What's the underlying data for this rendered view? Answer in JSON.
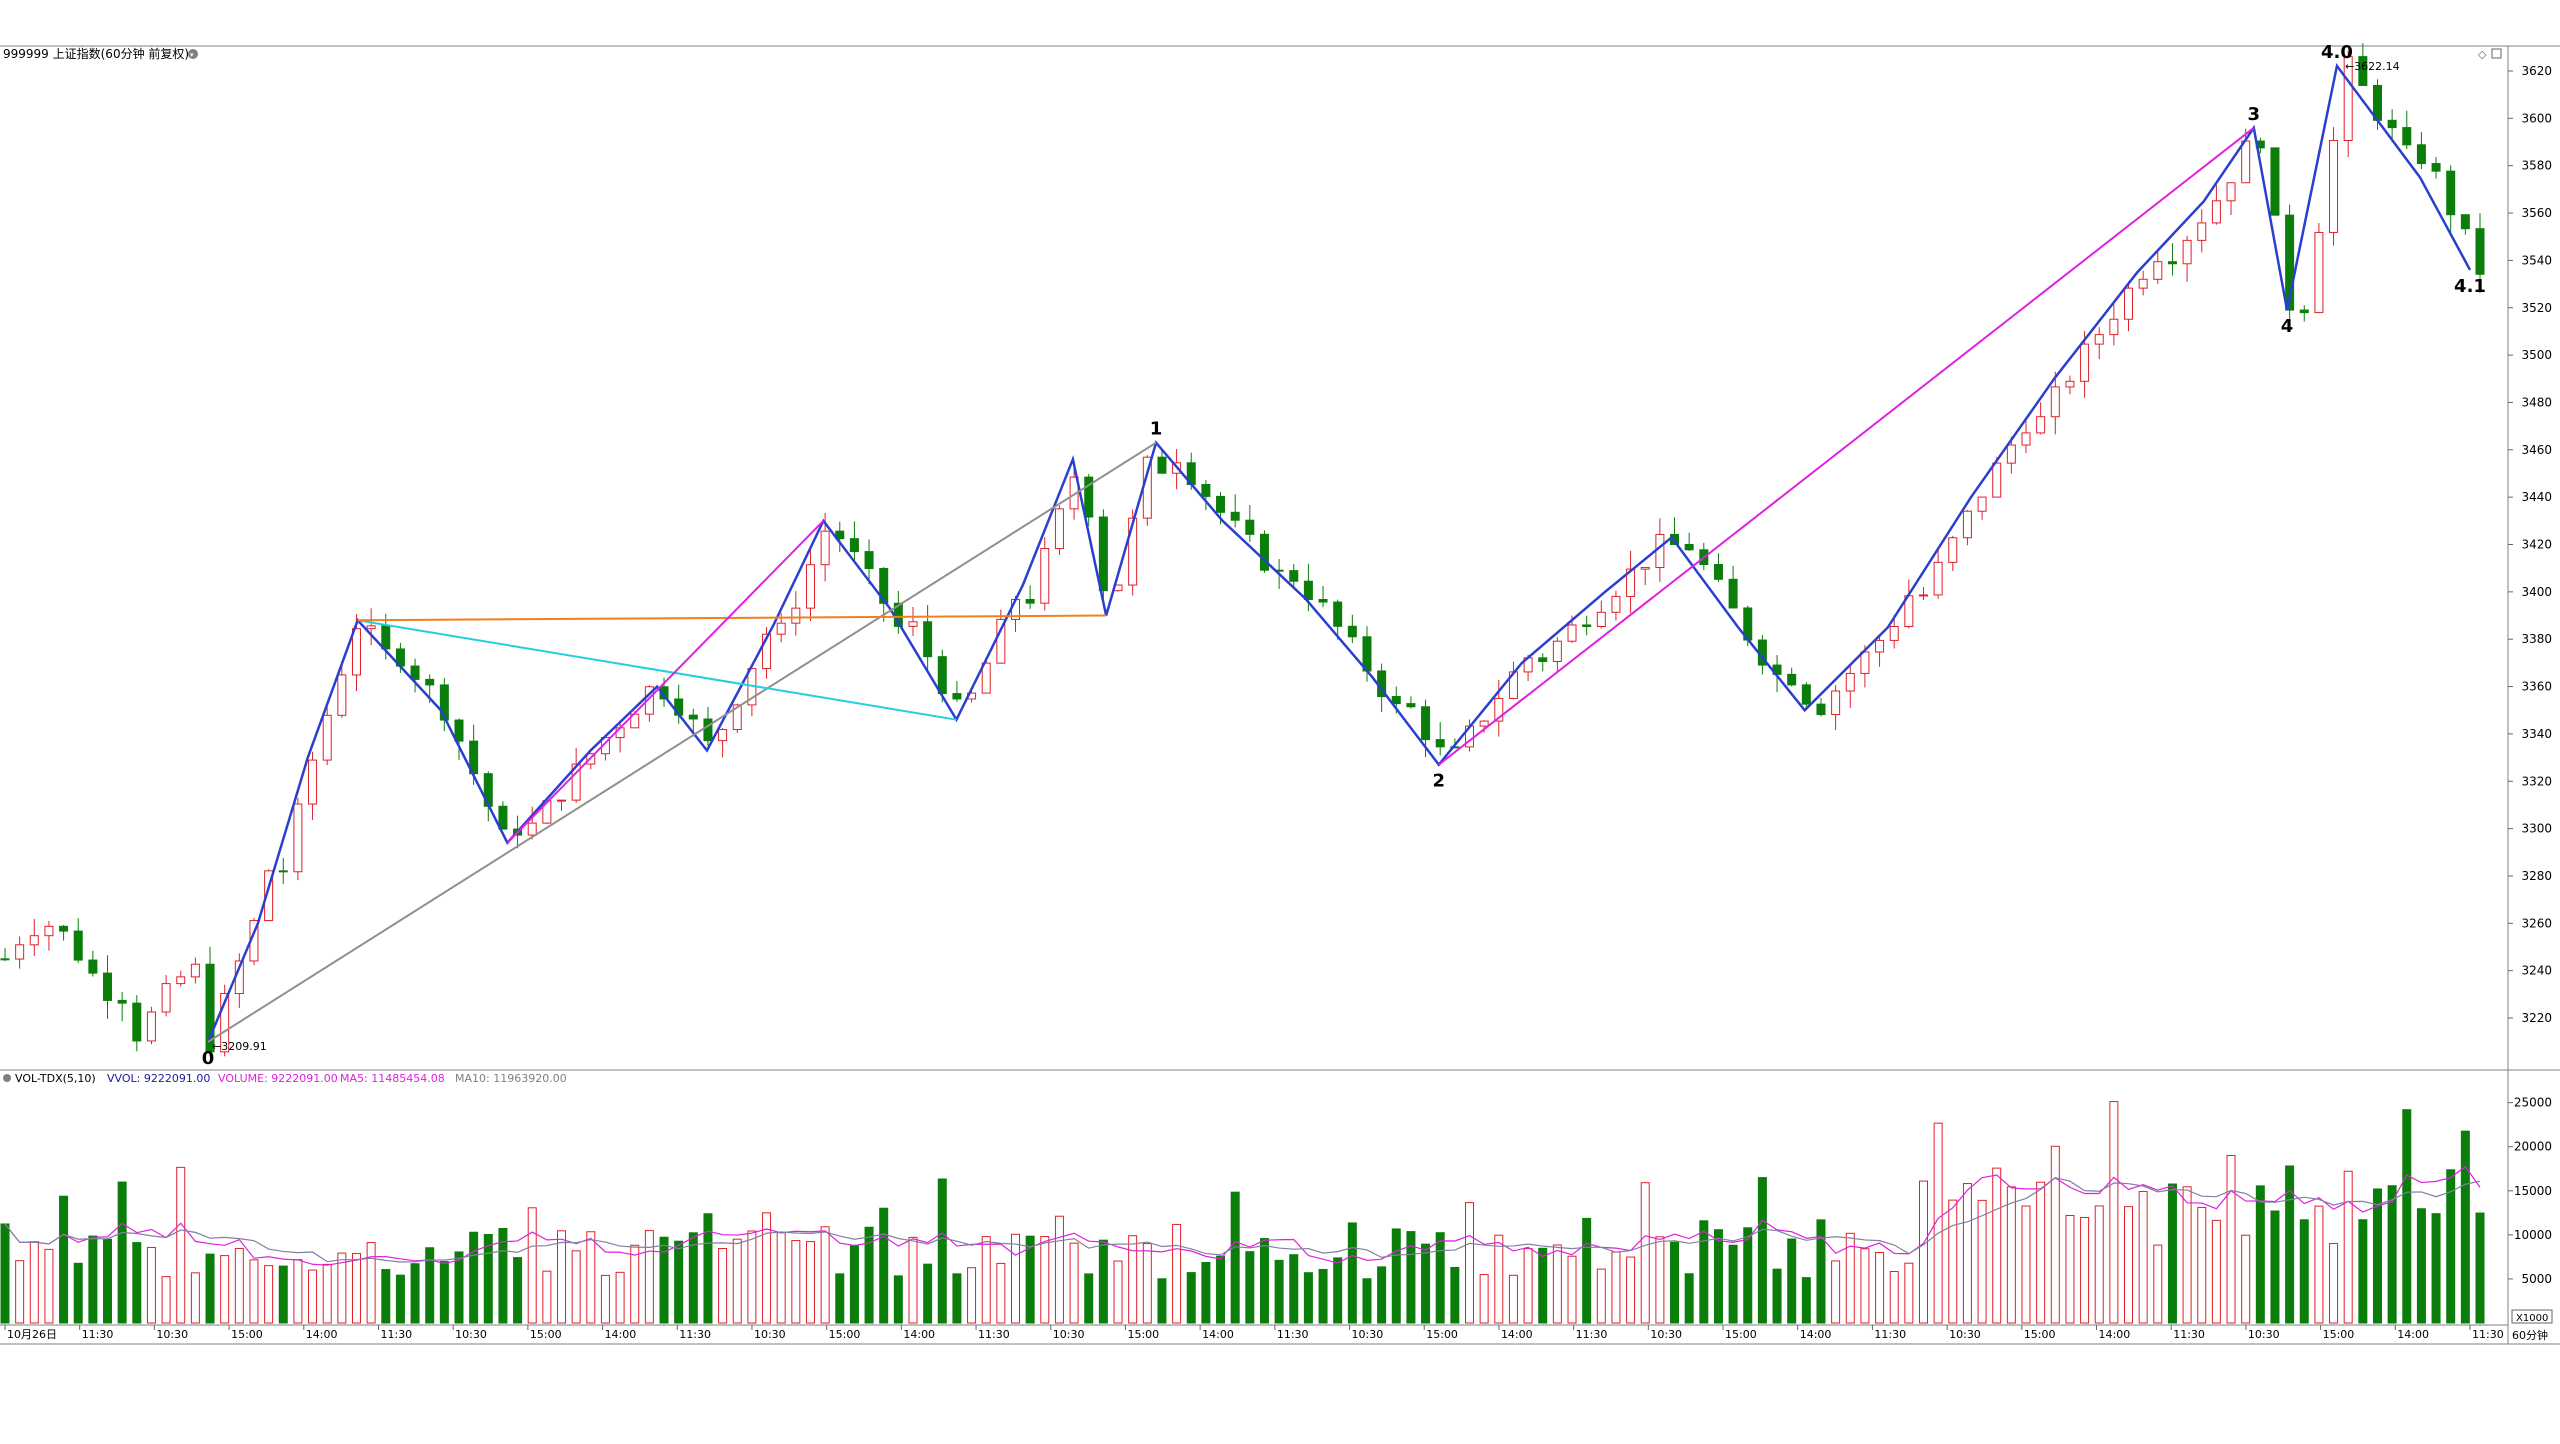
{
  "title": {
    "symbol_name": "999999 上证指数(60分钟 前复权)",
    "icon": "info-circle-icon"
  },
  "price_axis": {
    "ticks": [
      "3620",
      "3600",
      "3580",
      "3560",
      "3540",
      "3520",
      "3500",
      "3480",
      "3460",
      "3440",
      "3420",
      "3400",
      "3380",
      "3360",
      "3340",
      "3320",
      "3300",
      "3280",
      "3260",
      "3240",
      "3220"
    ],
    "min": 3200,
    "max": 3630
  },
  "price_labels": {
    "high": "3622.14",
    "low": "3209.91"
  },
  "wave_labels": [
    "0",
    "1",
    "2",
    "3",
    "4",
    "4.0",
    "4.1"
  ],
  "volume_panel": {
    "indicator": "VOL-TDX(5,10)",
    "vvol": "VVOL: 9222091.00",
    "volume": "VOLUME: 9222091.00",
    "ma5": "MA5: 11485454.08",
    "ma10": "MA10: 11963920.00",
    "ticks": [
      "25000",
      "20000",
      "15000",
      "10000",
      "5000"
    ],
    "unit": "X1000"
  },
  "time_axis": {
    "labels": [
      "10月26日",
      "11:30",
      "10:30",
      "15:00",
      "14:00",
      "11:30",
      "10:30",
      "15:00",
      "14:00",
      "11:30",
      "10:30",
      "15:00",
      "14:00",
      "11:30",
      "10:30",
      "15:00",
      "14:00",
      "11:30",
      "10:30",
      "15:00",
      "14:00",
      "11:30",
      "10:30",
      "15:00",
      "14:00",
      "11:30",
      "10:30",
      "15:00",
      "14:00",
      "11:30",
      "10:30",
      "15:00",
      "14:00",
      "11:30"
    ],
    "period": "60分钟"
  },
  "colors": {
    "up": "#e0202a",
    "down": "#0a7d0a",
    "wave": "#2a3fd0",
    "channel_magenta": "#e020e0",
    "channel_cyan": "#20d0e0",
    "channel_orange": "#f08020",
    "channel_gray": "#909090",
    "vol_ma5": "#e020e0",
    "vol_ma10": "#8080a0"
  },
  "chart_data": {
    "type": "candlestick",
    "key_points": [
      {
        "label": "0",
        "bar": 30,
        "price": 3209.91
      },
      {
        "label": "1",
        "bar": 172,
        "price": 3463
      },
      {
        "label": "2",
        "bar": 221,
        "price": 3327
      },
      {
        "label": "3",
        "bar": 349,
        "price": 3596
      },
      {
        "label": "4",
        "bar": 352,
        "price": 3519
      },
      {
        "label": "4.0",
        "bar": 360,
        "price": 3622.14
      },
      {
        "label": "4.1",
        "bar": 376,
        "price": 3536
      }
    ],
    "wave_path": [
      [
        0,
        3209.91
      ],
      [
        3,
        3260
      ],
      [
        6,
        3330
      ],
      [
        9,
        3388
      ],
      [
        14,
        3350
      ],
      [
        18,
        3294
      ],
      [
        23,
        3333
      ],
      [
        27,
        3360
      ],
      [
        30,
        3333
      ],
      [
        34,
        3386
      ],
      [
        37,
        3430
      ],
      [
        41,
        3393
      ],
      [
        45,
        3346
      ],
      [
        49,
        3403
      ],
      [
        52,
        3456
      ],
      [
        54,
        3390
      ],
      [
        57,
        3463
      ],
      [
        61,
        3430
      ],
      [
        66,
        3397
      ],
      [
        70,
        3364
      ],
      [
        74,
        3327
      ],
      [
        79,
        3370
      ],
      [
        84,
        3400
      ],
      [
        88,
        3423
      ],
      [
        92,
        3385
      ],
      [
        96,
        3350
      ],
      [
        101,
        3385
      ],
      [
        106,
        3440
      ],
      [
        111,
        3490
      ],
      [
        116,
        3535
      ],
      [
        120,
        3565
      ],
      [
        123,
        3596
      ],
      [
        125,
        3519
      ],
      [
        128,
        3622.14
      ],
      [
        133,
        3575
      ],
      [
        136,
        3536
      ]
    ],
    "bar_count": 138,
    "volume_range": [
      0,
      27000
    ]
  }
}
